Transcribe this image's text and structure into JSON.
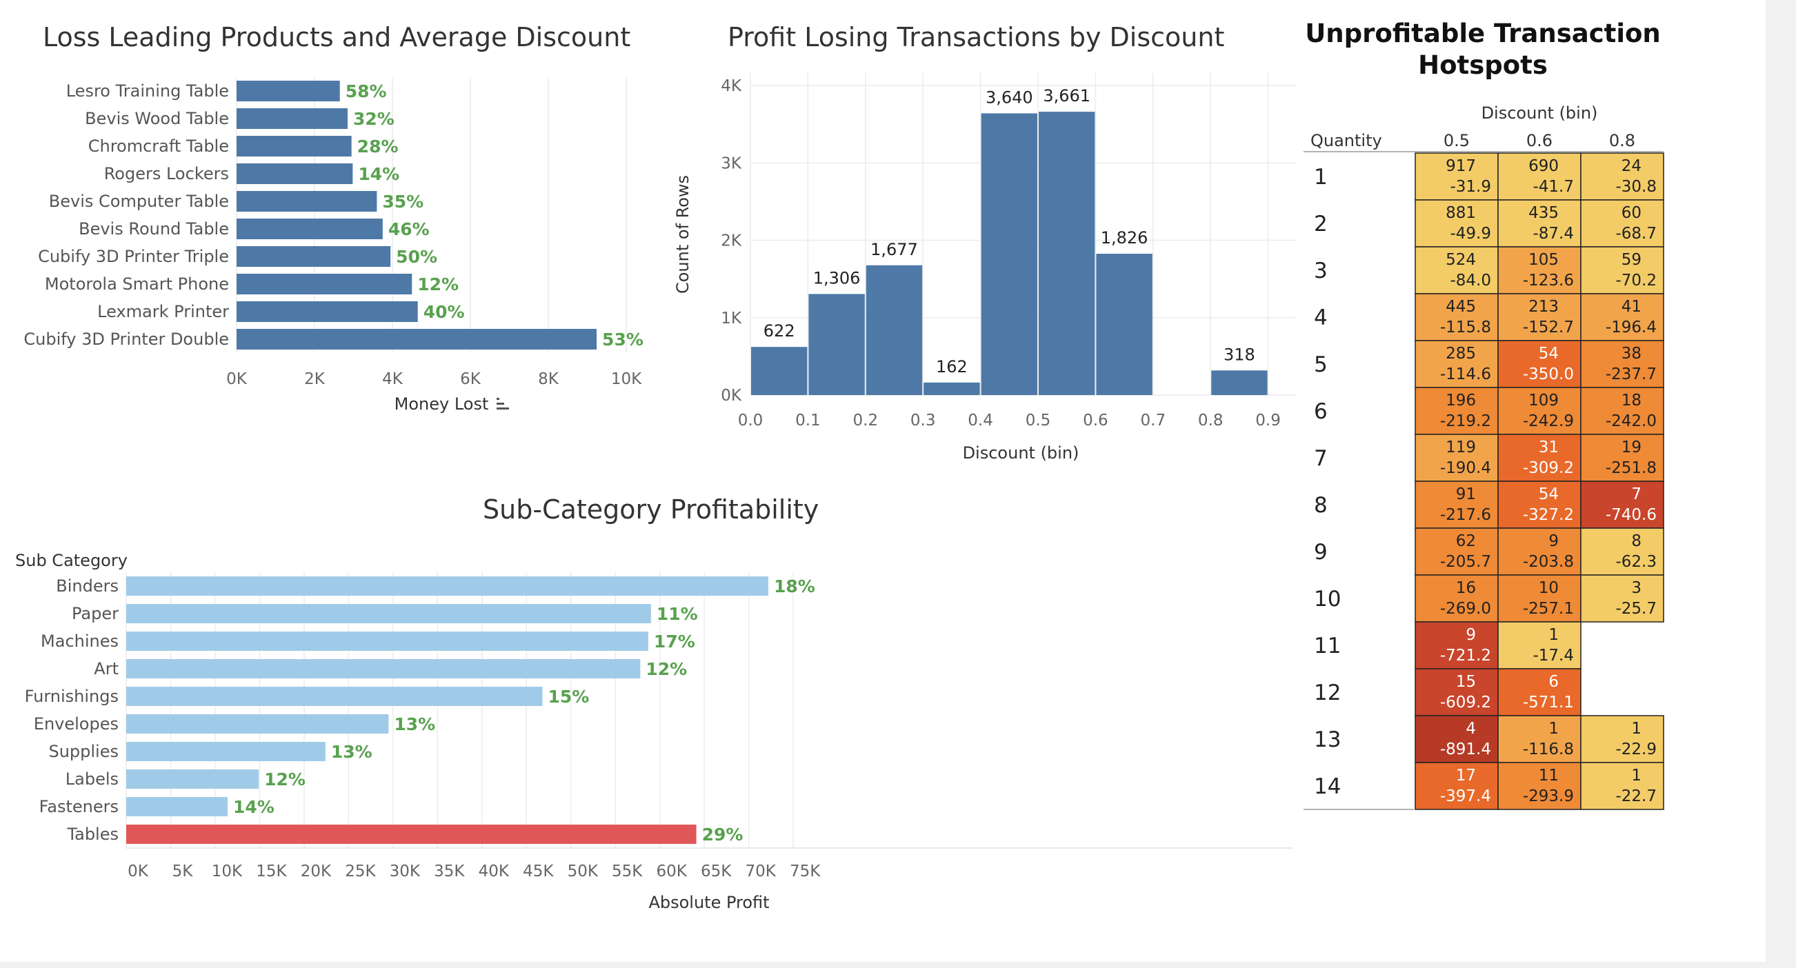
{
  "chart_data": [
    {
      "type": "bar",
      "orientation": "horizontal",
      "title": "Loss Leading Products and Average Discount",
      "xlabel": "Money Lost",
      "categories": [
        "Lesro Training Table",
        "Bevis Wood Table",
        "Chromcraft Table",
        "Rogers Lockers",
        "Bevis Computer Table",
        "Bevis Round Table",
        "Cubify 3D Printer Triple",
        "Motorola Smart Phone",
        "Lexmark Printer",
        "Cubify 3D Printer Double"
      ],
      "values": [
        2650,
        2850,
        2950,
        2980,
        3600,
        3750,
        3950,
        4500,
        4650,
        9240
      ],
      "labels": [
        "58%",
        "32%",
        "28%",
        "14%",
        "35%",
        "46%",
        "50%",
        "12%",
        "40%",
        "53%"
      ],
      "xlim": [
        0,
        10000
      ],
      "xticks": [
        0,
        2000,
        4000,
        6000,
        8000,
        10000
      ],
      "xtick_labels": [
        "0K",
        "2K",
        "4K",
        "6K",
        "8K",
        "10K"
      ],
      "colors": {
        "bar": "#4e79a7",
        "label": "#59a14f"
      },
      "sort_icon": "sort-descending-icon"
    },
    {
      "type": "bar",
      "title": "Profit Losing Transactions by Discount",
      "xlabel": "Discount (bin)",
      "ylabel": "Count of Rows",
      "bins": [
        0.0,
        0.1,
        0.2,
        0.3,
        0.4,
        0.5,
        0.6,
        0.7,
        0.8
      ],
      "values": [
        622,
        1306,
        1677,
        162,
        3640,
        3661,
        1826,
        0,
        318
      ],
      "labels": [
        "622",
        "1,306",
        "1,677",
        "162",
        "3,640",
        "3,661",
        "1,826",
        "",
        "318"
      ],
      "xticks": [
        "0.0",
        "0.1",
        "0.2",
        "0.3",
        "0.4",
        "0.5",
        "0.6",
        "0.7",
        "0.8",
        "0.9"
      ],
      "ylim": [
        0,
        4000
      ],
      "yticks": [
        0,
        1000,
        2000,
        3000,
        4000
      ],
      "ytick_labels": [
        "0K",
        "1K",
        "2K",
        "3K",
        "4K"
      ],
      "colors": {
        "bar": "#4e79a7"
      }
    },
    {
      "type": "bar",
      "orientation": "horizontal",
      "title": "Sub-Category Profitability",
      "xlabel": "Absolute Profit",
      "row_header": "Sub Category",
      "categories": [
        "Binders",
        "Paper",
        "Machines",
        "Art",
        "Furnishings",
        "Envelopes",
        "Supplies",
        "Labels",
        "Fasteners",
        "Tables"
      ],
      "values": [
        72200,
        59000,
        58700,
        57800,
        46800,
        29500,
        22400,
        14900,
        11400,
        64100
      ],
      "labels": [
        "18%",
        "11%",
        "17%",
        "12%",
        "15%",
        "13%",
        "13%",
        "12%",
        "14%",
        "29%"
      ],
      "xlim": [
        0,
        78000
      ],
      "xticks": [
        0,
        5000,
        10000,
        15000,
        20000,
        25000,
        30000,
        35000,
        40000,
        45000,
        50000,
        55000,
        60000,
        65000,
        70000,
        75000
      ],
      "xtick_labels": [
        "0K",
        "5K",
        "10K",
        "15K",
        "20K",
        "25K",
        "30K",
        "35K",
        "40K",
        "45K",
        "50K",
        "55K",
        "60K",
        "65K",
        "70K",
        "75K"
      ],
      "colors": {
        "bar": "#a0cbe8",
        "highlight": "#e15759",
        "label": "#59a14f"
      },
      "highlight_category": "Tables"
    },
    {
      "type": "heatmap",
      "title": "Unprofitable Transaction Hotspots",
      "column_header": "Discount (bin)",
      "row_header": "Quantity",
      "columns": [
        "0.5",
        "0.6",
        "0.8"
      ],
      "rows": [
        "1",
        "2",
        "3",
        "4",
        "5",
        "6",
        "7",
        "8",
        "9",
        "10",
        "11",
        "12",
        "13",
        "14"
      ],
      "cells": [
        [
          [
            917,
            "-31.9"
          ],
          [
            690,
            "-41.7"
          ],
          [
            24,
            "-30.8"
          ]
        ],
        [
          [
            881,
            "-49.9"
          ],
          [
            435,
            "-87.4"
          ],
          [
            60,
            "-68.7"
          ]
        ],
        [
          [
            524,
            "-84.0"
          ],
          [
            105,
            "-123.6"
          ],
          [
            59,
            "-70.2"
          ]
        ],
        [
          [
            445,
            "-115.8"
          ],
          [
            213,
            "-152.7"
          ],
          [
            41,
            "-196.4"
          ]
        ],
        [
          [
            285,
            "-114.6"
          ],
          [
            54,
            "-350.0"
          ],
          [
            38,
            "-237.7"
          ]
        ],
        [
          [
            196,
            "-219.2"
          ],
          [
            109,
            "-242.9"
          ],
          [
            18,
            "-242.0"
          ]
        ],
        [
          [
            119,
            "-190.4"
          ],
          [
            31,
            "-309.2"
          ],
          [
            19,
            "-251.8"
          ]
        ],
        [
          [
            91,
            "-217.6"
          ],
          [
            54,
            "-327.2"
          ],
          [
            7,
            "-740.6"
          ]
        ],
        [
          [
            62,
            "-205.7"
          ],
          [
            9,
            "-203.8"
          ],
          [
            8,
            "-62.3"
          ]
        ],
        [
          [
            16,
            "-269.0"
          ],
          [
            10,
            "-257.1"
          ],
          [
            3,
            "-25.7"
          ]
        ],
        [
          [
            9,
            "-721.2"
          ],
          [
            1,
            "-17.4"
          ],
          null
        ],
        [
          [
            15,
            "-609.2"
          ],
          [
            6,
            "-571.1"
          ],
          null
        ],
        [
          [
            4,
            "-891.4"
          ],
          [
            1,
            "-116.8"
          ],
          [
            1,
            "-22.9"
          ]
        ],
        [
          [
            17,
            "-397.4"
          ],
          [
            11,
            "-293.9"
          ],
          [
            1,
            "-22.7"
          ]
        ]
      ],
      "color_scale": [
        "#f3cc67",
        "#f2a44b",
        "#ef8a36",
        "#e8692a",
        "#c9452b",
        "#b73a27"
      ]
    }
  ]
}
